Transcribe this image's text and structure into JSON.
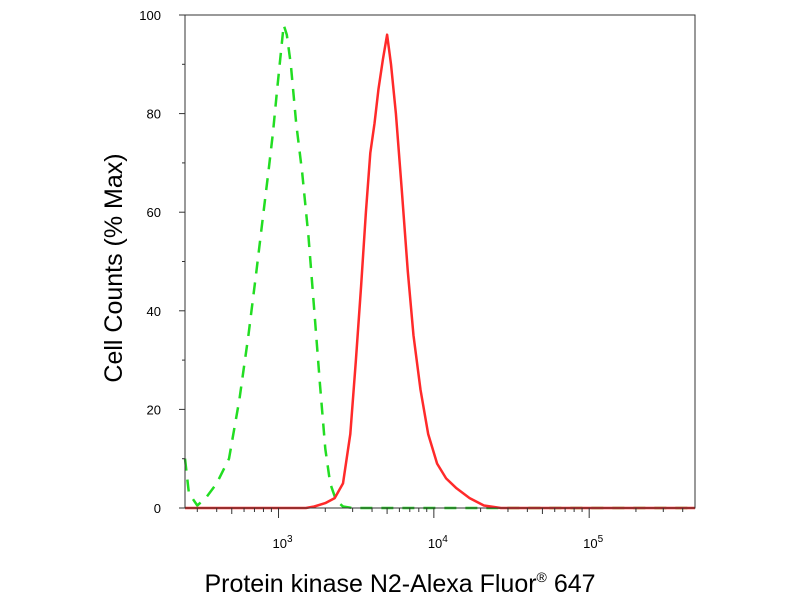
{
  "chart_data": {
    "type": "line",
    "xlabel": "Protein kinase N2-Alexa Fluor",
    "xlabel_sup": "®",
    "xlabel_suffix": " 647",
    "ylabel": "Cell Counts (% Max)",
    "x_scale": "log",
    "xlim": [
      250,
      480000
    ],
    "ylim": [
      0,
      100
    ],
    "y_ticks": [
      0,
      20,
      40,
      60,
      80,
      100
    ],
    "x_major_ticks": [
      {
        "value": 1000,
        "base": "10",
        "exp": "3"
      },
      {
        "value": 10000,
        "base": "10",
        "exp": "4"
      },
      {
        "value": 100000,
        "base": "10",
        "exp": "5"
      }
    ],
    "grid": false,
    "legend": "none",
    "series": [
      {
        "color": "#22dd22",
        "style": "dashed",
        "points": [
          [
            250,
            10
          ],
          [
            265,
            3
          ],
          [
            300,
            0.5
          ],
          [
            340,
            2
          ],
          [
            400,
            5
          ],
          [
            480,
            10
          ],
          [
            560,
            22
          ],
          [
            640,
            35
          ],
          [
            720,
            48
          ],
          [
            800,
            60
          ],
          [
            860,
            68
          ],
          [
            920,
            76
          ],
          [
            980,
            85
          ],
          [
            1040,
            93
          ],
          [
            1080,
            98
          ],
          [
            1130,
            96
          ],
          [
            1200,
            90
          ],
          [
            1300,
            78
          ],
          [
            1420,
            68
          ],
          [
            1560,
            55
          ],
          [
            1700,
            40
          ],
          [
            1850,
            25
          ],
          [
            2000,
            12
          ],
          [
            2150,
            5
          ],
          [
            2350,
            1.5
          ],
          [
            2600,
            0.3
          ],
          [
            3000,
            0
          ],
          [
            20000,
            0
          ],
          [
            480000,
            0
          ]
        ]
      },
      {
        "color": "#ff2a2a",
        "style": "solid",
        "points": [
          [
            250,
            0
          ],
          [
            1500,
            0
          ],
          [
            1700,
            0.3
          ],
          [
            2000,
            1
          ],
          [
            2300,
            2
          ],
          [
            2600,
            5
          ],
          [
            2900,
            15
          ],
          [
            3150,
            30
          ],
          [
            3400,
            45
          ],
          [
            3650,
            60
          ],
          [
            3900,
            72
          ],
          [
            4150,
            78
          ],
          [
            4400,
            85
          ],
          [
            4700,
            91
          ],
          [
            5000,
            96
          ],
          [
            5300,
            90
          ],
          [
            5700,
            80
          ],
          [
            6200,
            65
          ],
          [
            6800,
            48
          ],
          [
            7400,
            35
          ],
          [
            8200,
            24
          ],
          [
            9200,
            15
          ],
          [
            10500,
            9
          ],
          [
            12000,
            6
          ],
          [
            14000,
            4
          ],
          [
            17000,
            2
          ],
          [
            21000,
            0.5
          ],
          [
            27000,
            0
          ],
          [
            480000,
            0
          ]
        ]
      }
    ]
  }
}
